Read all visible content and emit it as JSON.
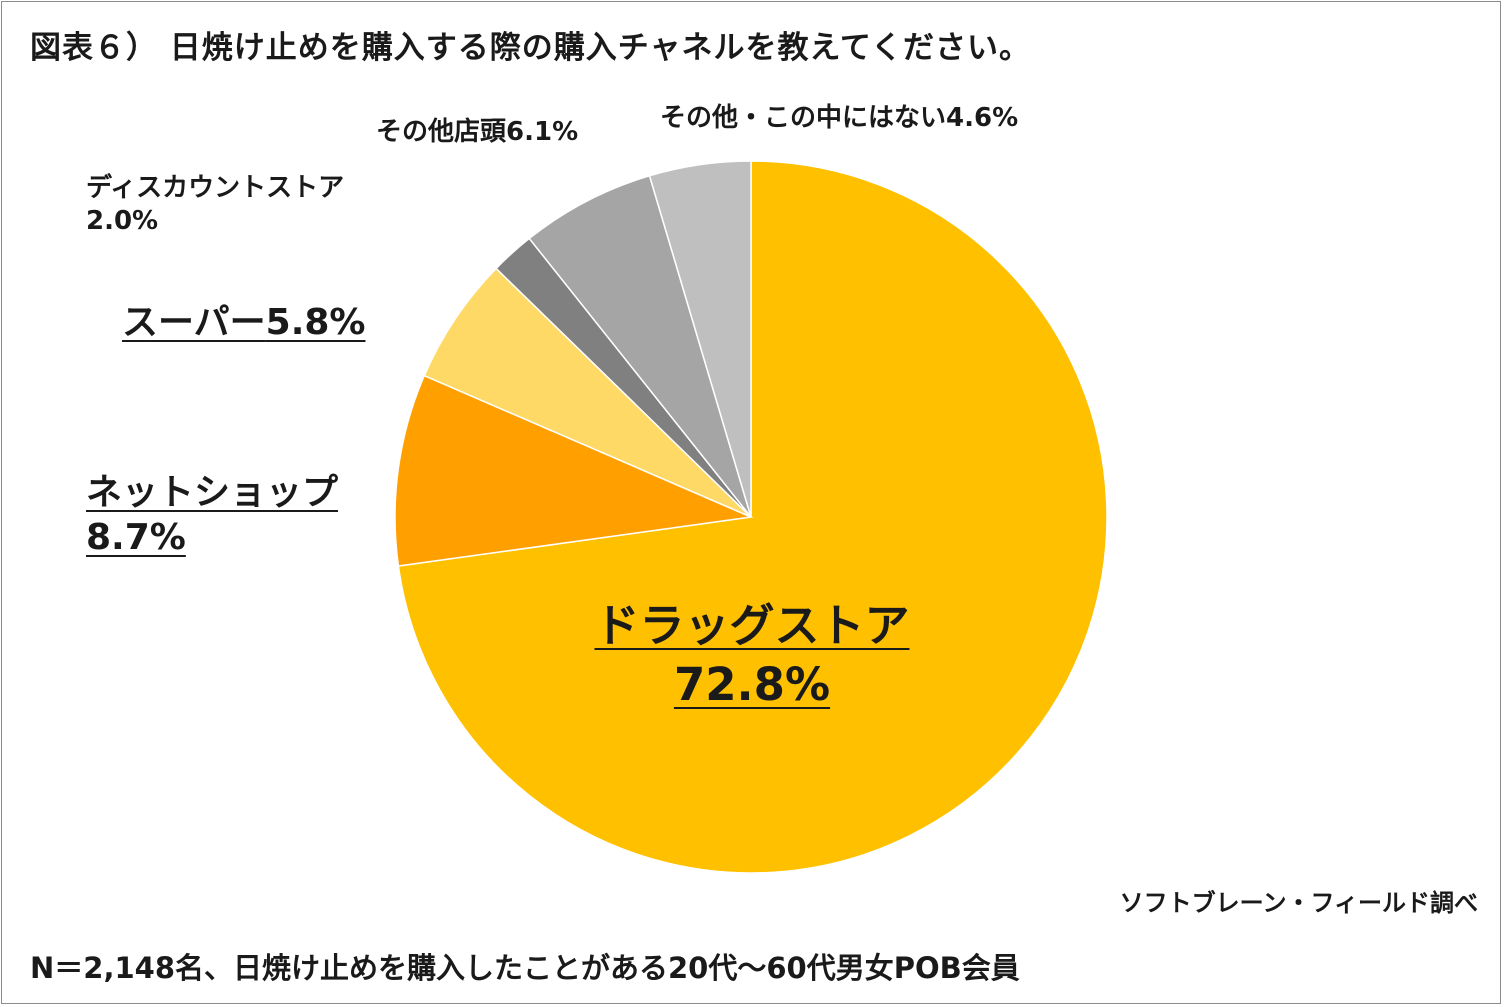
{
  "chart_data": {
    "type": "pie",
    "title": "図表６） 日焼け止めを購入する際の購入チャネルを教えてください。",
    "unit": "%",
    "start_angle_deg": 0,
    "direction": "clockwise",
    "slices": [
      {
        "label": "ドラッグストア",
        "value": 72.8,
        "value_label": "72.8%",
        "color": "#FFC000"
      },
      {
        "label": "ネットショップ",
        "value": 8.7,
        "value_label": "8.7%",
        "color": "#FF9F00"
      },
      {
        "label": "スーパー",
        "value": 5.8,
        "value_label": "5.8%",
        "color": "#FFD966"
      },
      {
        "label": "ディスカウントストア",
        "value": 2.0,
        "value_label": "2.0%",
        "color": "#808080"
      },
      {
        "label": "その他店頭",
        "value": 6.1,
        "value_label": "6.1%",
        "color": "#A5A5A5"
      },
      {
        "label": "その他・この中にはない",
        "value": 4.6,
        "value_label": "4.6%",
        "color": "#BFBFBF"
      }
    ]
  },
  "source_note": "ソフトブレーン・フィールド調べ",
  "footnote": "N＝2,148名、日焼け止めを購入したことがある20代～60代男女POB会員"
}
